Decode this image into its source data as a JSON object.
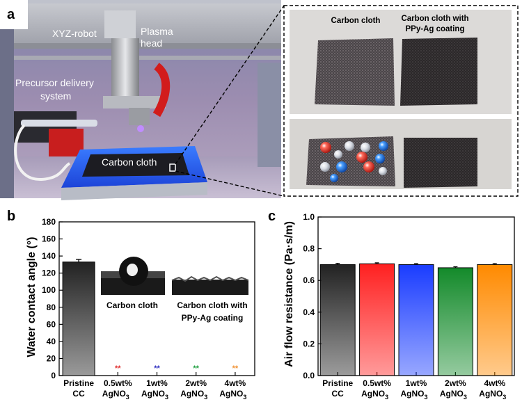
{
  "panel_a": {
    "letter": "a",
    "labels": {
      "robot": "XYZ-robot",
      "plasma_line1": "Plasma",
      "plasma_line2": "head",
      "precursor_line1": "Precursor delivery",
      "precursor_line2": "system",
      "carbon_cloth": "Carbon cloth"
    },
    "inset": {
      "left_title": "Carbon cloth",
      "right_title_line1": "Carbon cloth with",
      "right_title_line2": "PPy-Ag coating"
    }
  },
  "chart_data": [
    {
      "panel": "b",
      "type": "bar",
      "ylabel": "Water contact angle (°)",
      "ylim": [
        0,
        180
      ],
      "yticks": [
        0,
        20,
        40,
        60,
        80,
        100,
        120,
        140,
        160,
        180
      ],
      "categories": [
        "Pristine CC",
        "0.5wt% AgNO3",
        "1wt% AgNO3",
        "2wt% AgNO3",
        "4wt% AgNO3"
      ],
      "values": [
        133,
        0,
        0,
        0,
        0
      ],
      "errors": [
        3,
        0,
        0,
        0,
        0
      ],
      "markers": [
        "",
        "**",
        "**",
        "**",
        "**"
      ],
      "marker_colors": [
        "",
        "#e03030",
        "#3030c0",
        "#20a040",
        "#f09030"
      ],
      "inset_labels": {
        "left": "Carbon cloth",
        "right_line1": "Carbon cloth with",
        "right_line2": "PPy-Ag coating"
      }
    },
    {
      "panel": "c",
      "type": "bar",
      "ylabel": "Air flow resistance (Pa·s/m)",
      "ylim": [
        0.0,
        1.0
      ],
      "yticks": [
        "0.0",
        "0.2",
        "0.4",
        "0.6",
        "0.8",
        "1.0"
      ],
      "categories": [
        "Pristine CC",
        "0.5wt% AgNO3",
        "1wt% AgNO3",
        "2wt% AgNO3",
        "4wt% AgNO3"
      ],
      "values": [
        0.7,
        0.705,
        0.7,
        0.68,
        0.7
      ],
      "errors": [
        0.008,
        0.006,
        0.006,
        0.006,
        0.006
      ],
      "colors": [
        "#222222",
        "#ff2020",
        "#1a3cff",
        "#138a2a",
        "#ff8a00"
      ]
    }
  ],
  "tick_labels": {
    "pristine_line1": "Pristine",
    "pristine_line2": "CC",
    "c1_line1": "0.5wt%",
    "c2_line1": "1wt%",
    "c3_line1": "2wt%",
    "c4_line1": "4wt%",
    "agno3": "AgNO",
    "sub3": "3"
  },
  "letters": {
    "b": "b",
    "c": "c"
  }
}
